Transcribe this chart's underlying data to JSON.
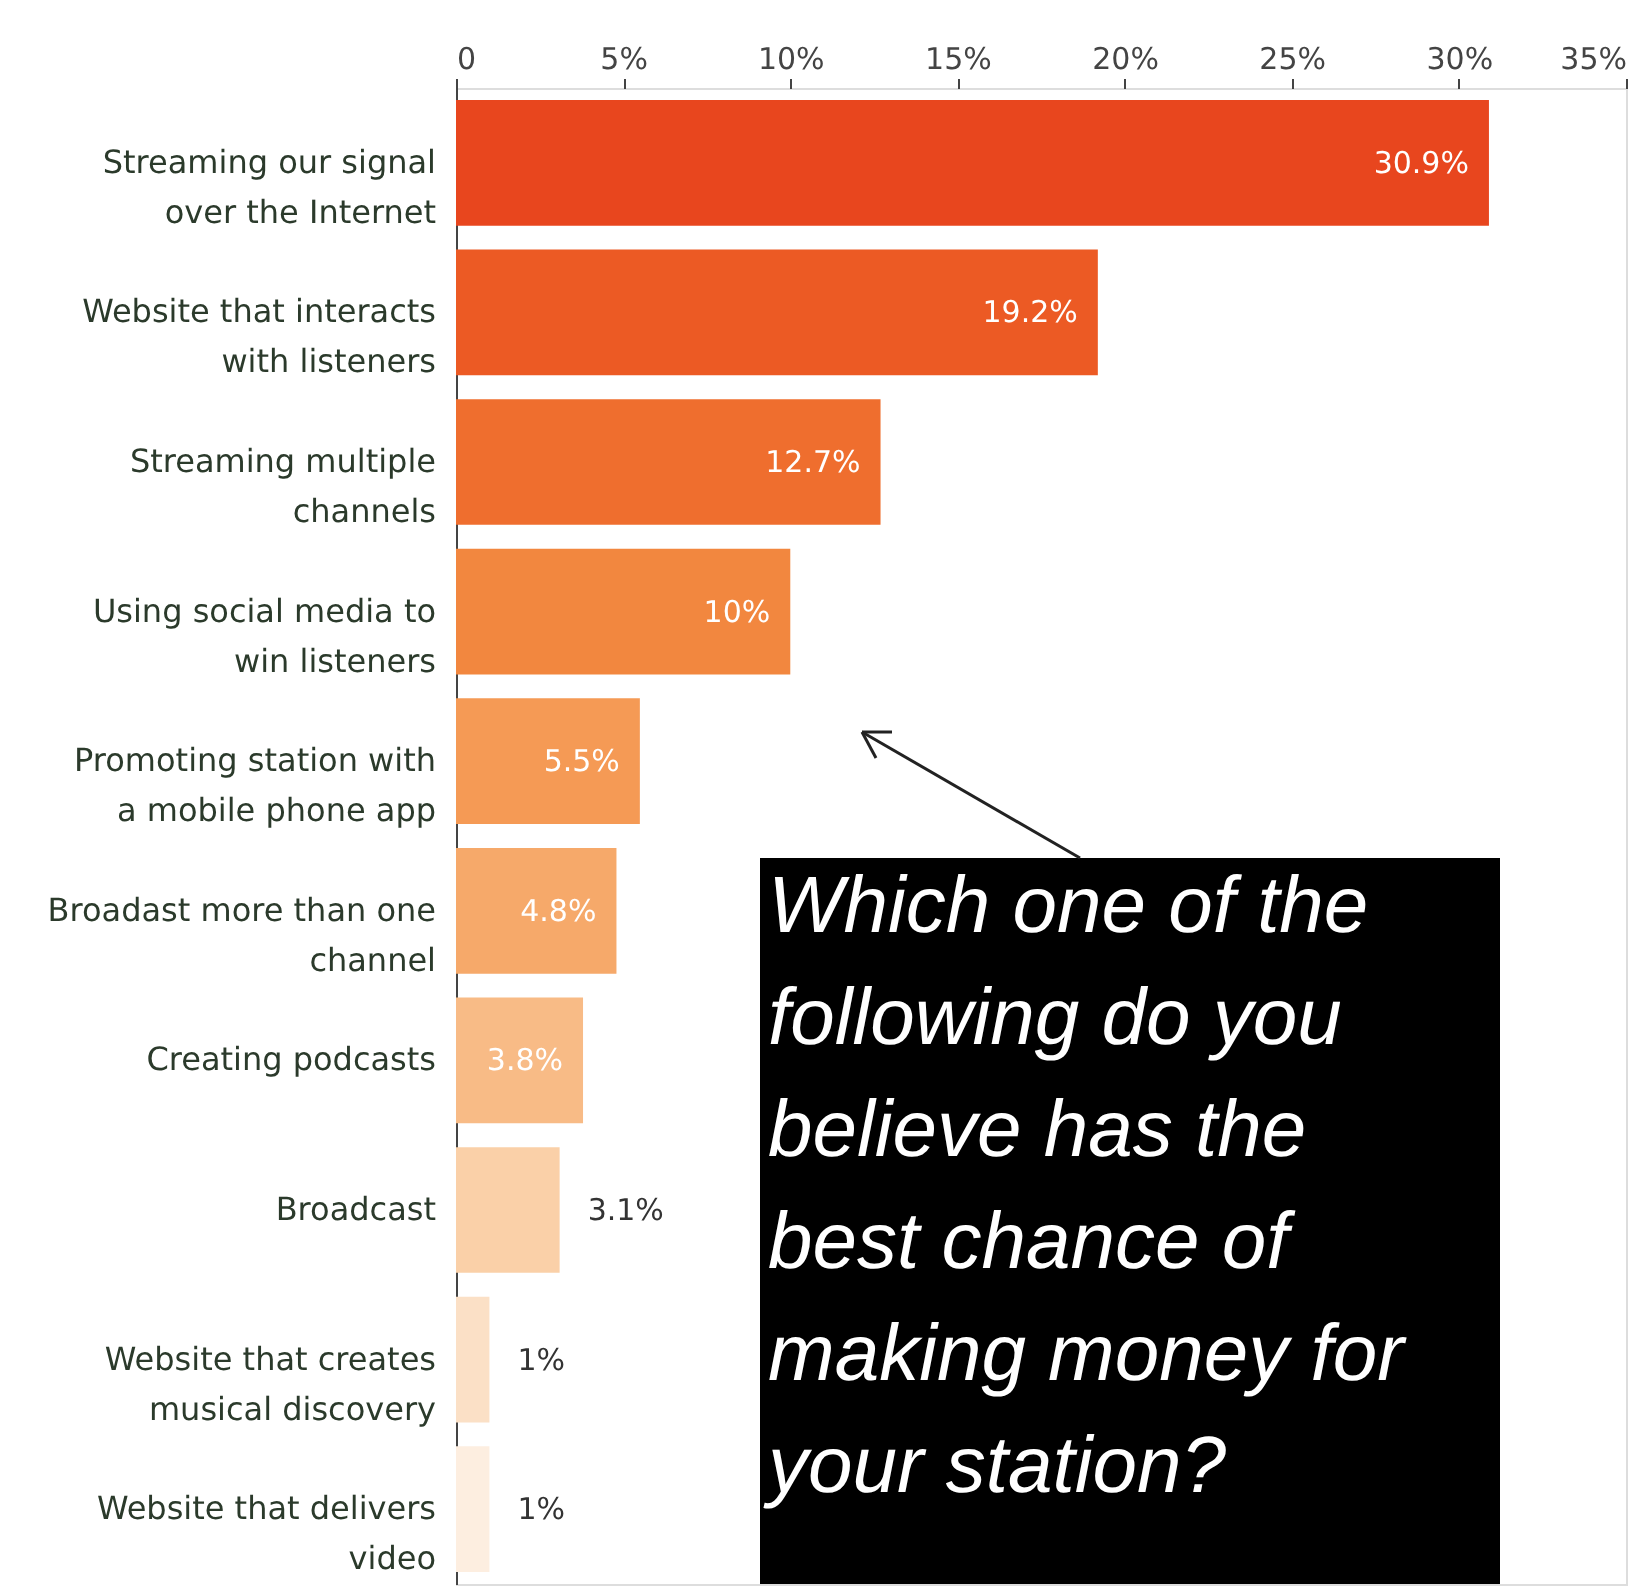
{
  "chart_data": {
    "type": "bar",
    "orientation": "horizontal",
    "categories": [
      "Streaming our signal over the Internet",
      "Website that interacts with listeners",
      "Streaming multiple channels",
      "Using social media to win listeners",
      "Promoting station with a mobile phone app",
      "Broadast more than one channel",
      "Creating podcasts",
      "Broadcast",
      "Website that creates musical discovery",
      "Website that delivers video"
    ],
    "values": [
      30.9,
      19.2,
      12.7,
      10,
      5.5,
      4.8,
      3.8,
      3.1,
      1,
      1
    ],
    "value_labels": [
      "30.9%",
      "19.2%",
      "12.7%",
      "10%",
      "5.5%",
      "4.8%",
      "3.8%",
      "3.1%",
      "1%",
      "1%"
    ],
    "colors": [
      "#e8461e",
      "#ec5a24",
      "#ef6e2e",
      "#f2873f",
      "#f59a55",
      "#f6a96a",
      "#f8bb86",
      "#fad0a8",
      "#fbe0c6",
      "#fdeee0"
    ],
    "xlim": [
      0,
      35
    ],
    "xticks": [
      0,
      {
        "value": 5,
        "label": "5%"
      },
      {
        "value": 10,
        "label": "10%"
      },
      {
        "value": 15,
        "label": "15%"
      },
      {
        "value": 20,
        "label": "20%"
      },
      {
        "value": 25,
        "label": "25%"
      },
      {
        "value": 30,
        "label": "30%"
      },
      {
        "value": 35,
        "label": "35%"
      }
    ],
    "grid": false,
    "annotations": [
      "Which one of the following do you believe has the best chance of making money for your station?"
    ]
  }
}
